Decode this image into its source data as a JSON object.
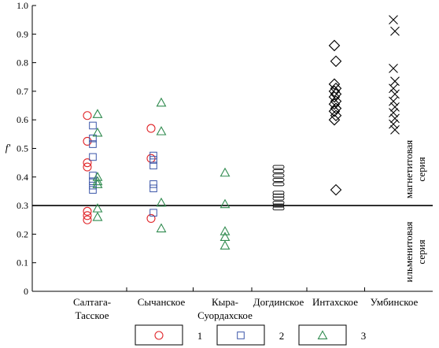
{
  "chart_data": {
    "type": "scatter",
    "ylabel": "f'",
    "ylim": [
      0,
      1.0
    ],
    "yticks": [
      "0",
      "0.1",
      "0.2",
      "0.3",
      "0.4",
      "0.5",
      "0.6",
      "0.7",
      "0.8",
      "0.9",
      "1.0"
    ],
    "categories": [
      "Салтага-\nТасское",
      "Сычанское",
      "Кыра-\nСуордахское",
      "Догдинское",
      "Интахское",
      "Умбинское"
    ],
    "threshold": 0.3,
    "annotations": {
      "upper": [
        "магнетитовая",
        "серия"
      ],
      "lower": [
        "ильменитовая",
        "серия"
      ]
    },
    "grid": false,
    "legend_position": "bottom",
    "legend": [
      {
        "label": "1",
        "marker": "circle",
        "color": "#e0262a"
      },
      {
        "label": "2",
        "marker": "square",
        "color": "#3a55a8"
      },
      {
        "label": "3",
        "marker": "triangle",
        "color": "#2f8a4e"
      }
    ],
    "series": [
      {
        "name": "1",
        "marker": "circle",
        "color": "#e0262a",
        "points": [
          {
            "cat": 0,
            "y": 0.615
          },
          {
            "cat": 0,
            "y": 0.525
          },
          {
            "cat": 0,
            "y": 0.45
          },
          {
            "cat": 0,
            "y": 0.435
          },
          {
            "cat": 0,
            "y": 0.28
          },
          {
            "cat": 0,
            "y": 0.265
          },
          {
            "cat": 0,
            "y": 0.25
          },
          {
            "cat": 1,
            "y": 0.57
          },
          {
            "cat": 1,
            "y": 0.465
          },
          {
            "cat": 1,
            "y": 0.255
          }
        ]
      },
      {
        "name": "2",
        "marker": "square",
        "color": "#3a55a8",
        "points": [
          {
            "cat": 0,
            "y": 0.58
          },
          {
            "cat": 0,
            "y": 0.535
          },
          {
            "cat": 0,
            "y": 0.515
          },
          {
            "cat": 0,
            "y": 0.47
          },
          {
            "cat": 0,
            "y": 0.405
          },
          {
            "cat": 0,
            "y": 0.385
          },
          {
            "cat": 0,
            "y": 0.37
          },
          {
            "cat": 0,
            "y": 0.355
          },
          {
            "cat": 1,
            "y": 0.475
          },
          {
            "cat": 1,
            "y": 0.46
          },
          {
            "cat": 1,
            "y": 0.44
          },
          {
            "cat": 1,
            "y": 0.375
          },
          {
            "cat": 1,
            "y": 0.36
          },
          {
            "cat": 1,
            "y": 0.275
          }
        ]
      },
      {
        "name": "3",
        "marker": "triangle",
        "color": "#2f8a4e",
        "points": [
          {
            "cat": 0,
            "y": 0.62
          },
          {
            "cat": 0,
            "y": 0.555
          },
          {
            "cat": 0,
            "y": 0.4
          },
          {
            "cat": 0,
            "y": 0.385
          },
          {
            "cat": 0,
            "y": 0.375
          },
          {
            "cat": 0,
            "y": 0.29
          },
          {
            "cat": 0,
            "y": 0.26
          },
          {
            "cat": 1,
            "y": 0.66
          },
          {
            "cat": 1,
            "y": 0.56
          },
          {
            "cat": 1,
            "y": 0.31
          },
          {
            "cat": 1,
            "y": 0.22
          },
          {
            "cat": 2,
            "y": 0.415
          },
          {
            "cat": 2,
            "y": 0.305
          },
          {
            "cat": 2,
            "y": 0.21
          },
          {
            "cat": 2,
            "y": 0.19
          },
          {
            "cat": 2,
            "y": 0.16
          }
        ]
      },
      {
        "marker": "dash",
        "color": "#000000",
        "points": [
          {
            "cat": 3,
            "y": 0.435
          },
          {
            "cat": 3,
            "y": 0.42
          },
          {
            "cat": 3,
            "y": 0.405
          },
          {
            "cat": 3,
            "y": 0.39
          },
          {
            "cat": 3,
            "y": 0.375
          },
          {
            "cat": 3,
            "y": 0.345
          },
          {
            "cat": 3,
            "y": 0.335
          },
          {
            "cat": 3,
            "y": 0.325
          },
          {
            "cat": 3,
            "y": 0.31
          },
          {
            "cat": 3,
            "y": 0.3
          },
          {
            "cat": 3,
            "y": 0.29
          }
        ]
      },
      {
        "marker": "diamond",
        "color": "#000000",
        "points": [
          {
            "cat": 4,
            "y": 0.86
          },
          {
            "cat": 4,
            "y": 0.805
          },
          {
            "cat": 4,
            "y": 0.725
          },
          {
            "cat": 4,
            "y": 0.71
          },
          {
            "cat": 4,
            "y": 0.7
          },
          {
            "cat": 4,
            "y": 0.69
          },
          {
            "cat": 4,
            "y": 0.68
          },
          {
            "cat": 4,
            "y": 0.665
          },
          {
            "cat": 4,
            "y": 0.655
          },
          {
            "cat": 4,
            "y": 0.64
          },
          {
            "cat": 4,
            "y": 0.63
          },
          {
            "cat": 4,
            "y": 0.615
          },
          {
            "cat": 4,
            "y": 0.6
          },
          {
            "cat": 4,
            "y": 0.355
          }
        ]
      },
      {
        "marker": "x",
        "color": "#000000",
        "points": [
          {
            "cat": 5,
            "y": 0.95
          },
          {
            "cat": 5,
            "y": 0.91
          },
          {
            "cat": 5,
            "y": 0.78
          },
          {
            "cat": 5,
            "y": 0.735
          },
          {
            "cat": 5,
            "y": 0.71
          },
          {
            "cat": 5,
            "y": 0.69
          },
          {
            "cat": 5,
            "y": 0.665
          },
          {
            "cat": 5,
            "y": 0.645
          },
          {
            "cat": 5,
            "y": 0.625
          },
          {
            "cat": 5,
            "y": 0.605
          },
          {
            "cat": 5,
            "y": 0.585
          },
          {
            "cat": 5,
            "y": 0.565
          }
        ]
      }
    ]
  }
}
